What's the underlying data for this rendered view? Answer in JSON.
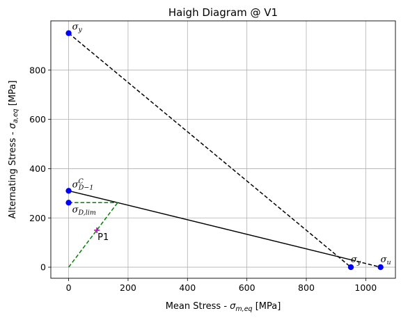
{
  "chart_data": {
    "type": "line",
    "title": "Haigh Diagram @ V1",
    "xlabel_parts": [
      "Mean Stress - ",
      "σ",
      "m,eq",
      " [MPa]"
    ],
    "ylabel_parts": [
      "Alternating Stress - ",
      "σ",
      "a,eq",
      " [MPa]"
    ],
    "xlim": [
      -60,
      1100
    ],
    "ylim": [
      -45,
      1000
    ],
    "xticks": [
      0,
      200,
      400,
      600,
      800,
      1000
    ],
    "yticks": [
      0,
      200,
      400,
      600,
      800
    ],
    "grid": true,
    "colors": {
      "yield_line": "#000000",
      "goodman_line": "#000000",
      "load_path": "#008000",
      "points": "#0000ff",
      "operating_point": "#bf00bf",
      "grid": "#b0b0b0"
    },
    "series": [
      {
        "id": "yield-line",
        "style": "dashed",
        "color": "#000000",
        "x": [
          0,
          950
        ],
        "y": [
          950,
          0
        ]
      },
      {
        "id": "ultimate-dash",
        "style": "dashed",
        "color": "#000000",
        "x": [
          950,
          1050
        ],
        "y": [
          30,
          0
        ]
      },
      {
        "id": "goodman-line",
        "style": "solid",
        "color": "#000000",
        "x": [
          0,
          165,
          950
        ],
        "y": [
          310,
          262,
          30
        ]
      },
      {
        "id": "load-horizontal",
        "style": "dashed",
        "color": "#008000",
        "x": [
          0,
          165
        ],
        "y": [
          262,
          262
        ]
      },
      {
        "id": "load-ray",
        "style": "dashed",
        "color": "#008000",
        "x": [
          0,
          165
        ],
        "y": [
          0,
          262
        ]
      }
    ],
    "points": [
      {
        "id": "sigma-y-top",
        "x": 0,
        "y": 950,
        "label": "σ",
        "sub": "y",
        "sup": ""
      },
      {
        "id": "sigma-d-1c",
        "x": 0,
        "y": 310,
        "label": "σ",
        "sub": "D−1",
        "sup": "C"
      },
      {
        "id": "sigma-d-lim",
        "x": 0,
        "y": 262,
        "label": "σ",
        "sub": "D,lim",
        "sup": ""
      },
      {
        "id": "sigma-y-right",
        "x": 950,
        "y": 0,
        "label": "σ",
        "sub": "y",
        "sup": ""
      },
      {
        "id": "sigma-u",
        "x": 1050,
        "y": 0,
        "label": "σ",
        "sub": "u",
        "sup": ""
      }
    ],
    "operating_point": {
      "x": 95,
      "y": 150,
      "label": "P1"
    }
  }
}
